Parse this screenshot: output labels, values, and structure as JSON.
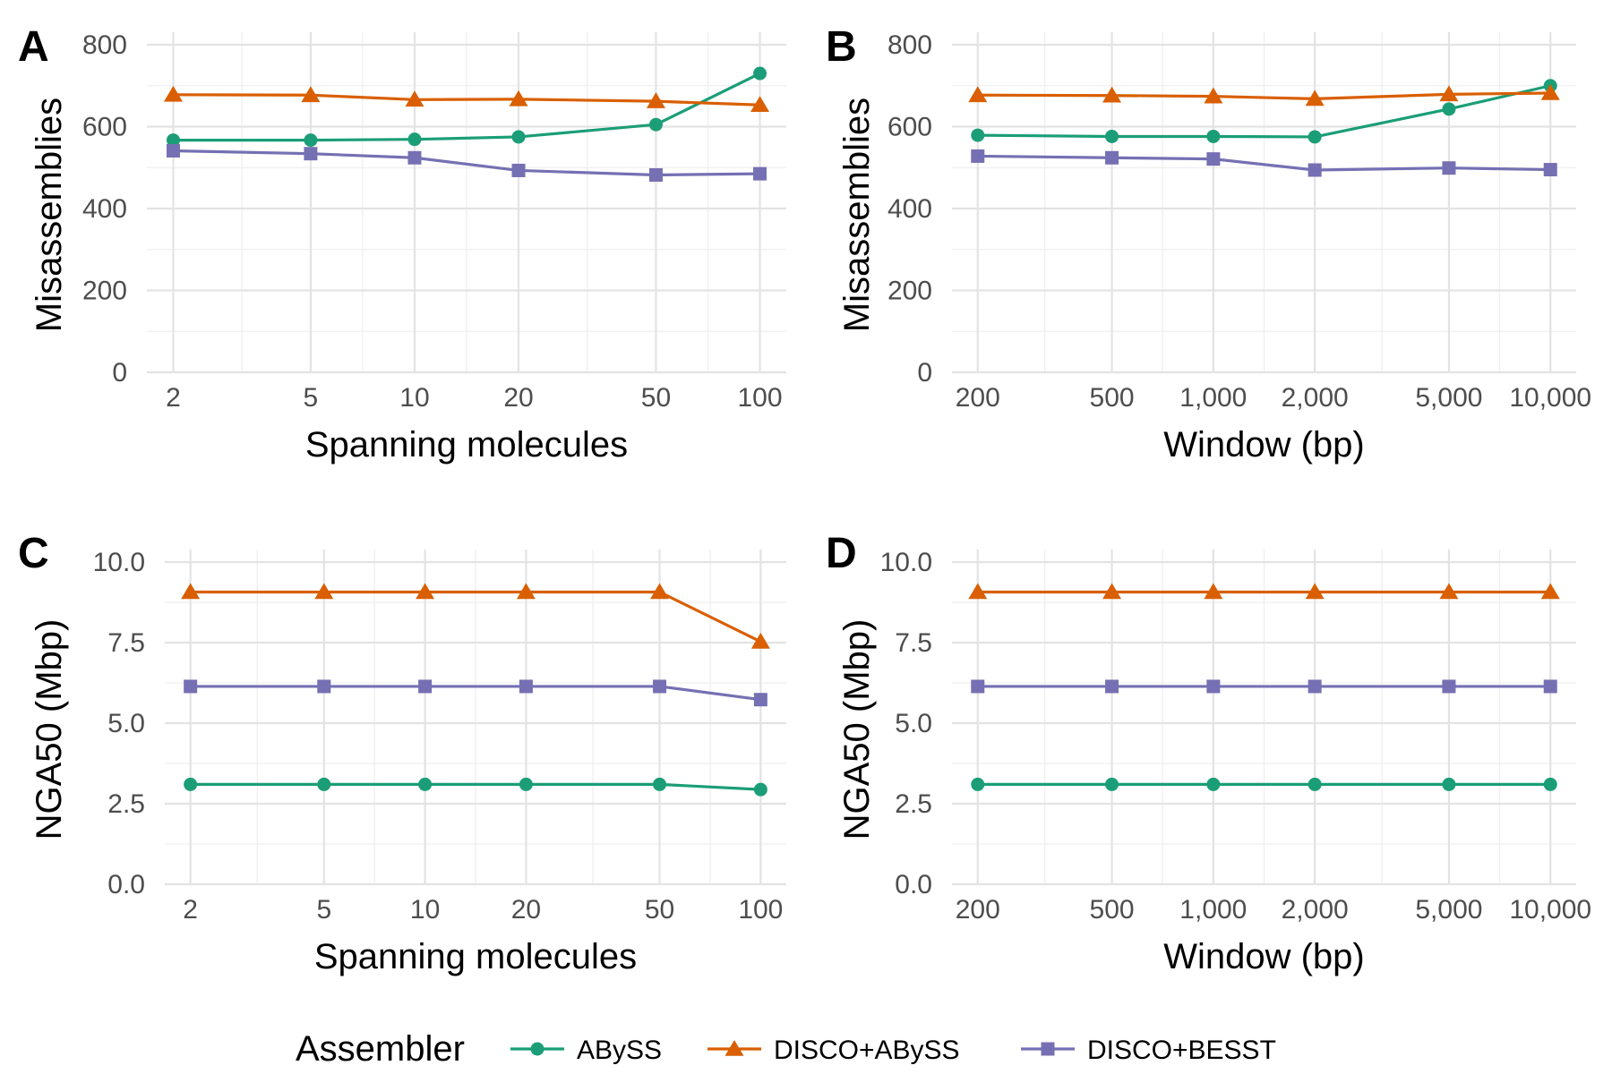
{
  "chart_data": [
    {
      "panel": "A",
      "type": "line",
      "xlabel": "Spanning molecules",
      "ylabel": "Misassemblies",
      "x_scale": "log",
      "x": [
        2,
        5,
        10,
        20,
        50,
        100
      ],
      "x_tick_labels": [
        "2",
        "5",
        "10",
        "20",
        "50",
        "100"
      ],
      "ylim": [
        0,
        800
      ],
      "y_ticks": [
        0,
        200,
        400,
        600,
        800
      ],
      "y_tick_labels": [
        "0",
        "200",
        "400",
        "600",
        "800"
      ],
      "series": [
        {
          "name": "ABySS",
          "values": [
            567,
            567,
            569,
            575,
            605,
            730
          ]
        },
        {
          "name": "DISCO+ABySS",
          "values": [
            678,
            677,
            666,
            667,
            662,
            653
          ]
        },
        {
          "name": "DISCO+BESST",
          "values": [
            541,
            534,
            524,
            493,
            482,
            485
          ]
        }
      ]
    },
    {
      "panel": "B",
      "type": "line",
      "xlabel": "Window (bp)",
      "ylabel": "Misassemblies",
      "x_scale": "log",
      "x": [
        200,
        500,
        1000,
        2000,
        5000,
        10000
      ],
      "x_tick_labels": [
        "200",
        "500",
        "1,000",
        "2,000",
        "5,000",
        "10,000"
      ],
      "ylim": [
        0,
        800
      ],
      "y_ticks": [
        0,
        200,
        400,
        600,
        800
      ],
      "y_tick_labels": [
        "0",
        "200",
        "400",
        "600",
        "800"
      ],
      "series": [
        {
          "name": "ABySS",
          "values": [
            579,
            576,
            576,
            575,
            643,
            700
          ]
        },
        {
          "name": "DISCO+ABySS",
          "values": [
            677,
            676,
            674,
            668,
            679,
            682
          ]
        },
        {
          "name": "DISCO+BESST",
          "values": [
            528,
            524,
            521,
            494,
            499,
            495
          ]
        }
      ]
    },
    {
      "panel": "C",
      "type": "line",
      "xlabel": "Spanning molecules",
      "ylabel": "NGA50 (Mbp)",
      "x_scale": "log",
      "x": [
        2,
        5,
        10,
        20,
        50,
        100
      ],
      "x_tick_labels": [
        "2",
        "5",
        "10",
        "20",
        "50",
        "100"
      ],
      "ylim": [
        0,
        10
      ],
      "y_ticks": [
        0,
        2.5,
        5,
        7.5,
        10
      ],
      "y_tick_labels": [
        "0.0",
        "2.5",
        "5.0",
        "7.5",
        "10.0"
      ],
      "series": [
        {
          "name": "ABySS",
          "values": [
            3.1,
            3.1,
            3.1,
            3.1,
            3.1,
            2.94
          ]
        },
        {
          "name": "DISCO+ABySS",
          "values": [
            9.07,
            9.07,
            9.07,
            9.07,
            9.07,
            7.53
          ]
        },
        {
          "name": "DISCO+BESST",
          "values": [
            6.14,
            6.14,
            6.14,
            6.14,
            6.14,
            5.73
          ]
        }
      ]
    },
    {
      "panel": "D",
      "type": "line",
      "xlabel": "Window (bp)",
      "ylabel": "NGA50 (Mbp)",
      "x_scale": "log",
      "x": [
        200,
        500,
        1000,
        2000,
        5000,
        10000
      ],
      "x_tick_labels": [
        "200",
        "500",
        "1,000",
        "2,000",
        "5,000",
        "10,000"
      ],
      "ylim": [
        0,
        10
      ],
      "y_ticks": [
        0,
        2.5,
        5,
        7.5,
        10
      ],
      "y_tick_labels": [
        "0.0",
        "2.5",
        "5.0",
        "7.5",
        "10.0"
      ],
      "series": [
        {
          "name": "ABySS",
          "values": [
            3.1,
            3.1,
            3.1,
            3.1,
            3.1,
            3.1
          ]
        },
        {
          "name": "DISCO+ABySS",
          "values": [
            9.07,
            9.07,
            9.07,
            9.07,
            9.07,
            9.07
          ]
        },
        {
          "name": "DISCO+BESST",
          "values": [
            6.14,
            6.14,
            6.14,
            6.14,
            6.14,
            6.14
          ]
        }
      ]
    }
  ],
  "legend": {
    "title": "Assembler",
    "position": "bottom",
    "entries": [
      {
        "name": "ABySS",
        "color": "#1b9e77",
        "marker": "circle"
      },
      {
        "name": "DISCO+ABySS",
        "color": "#d95f02",
        "marker": "triangle"
      },
      {
        "name": "DISCO+BESST",
        "color": "#7570b3",
        "marker": "square"
      }
    ]
  },
  "series_styles": {
    "ABySS": {
      "color": "#1b9e77",
      "marker": "circle"
    },
    "DISCO+ABySS": {
      "color": "#d95f02",
      "marker": "triangle"
    },
    "DISCO+BESST": {
      "color": "#7570b3",
      "marker": "square"
    }
  }
}
